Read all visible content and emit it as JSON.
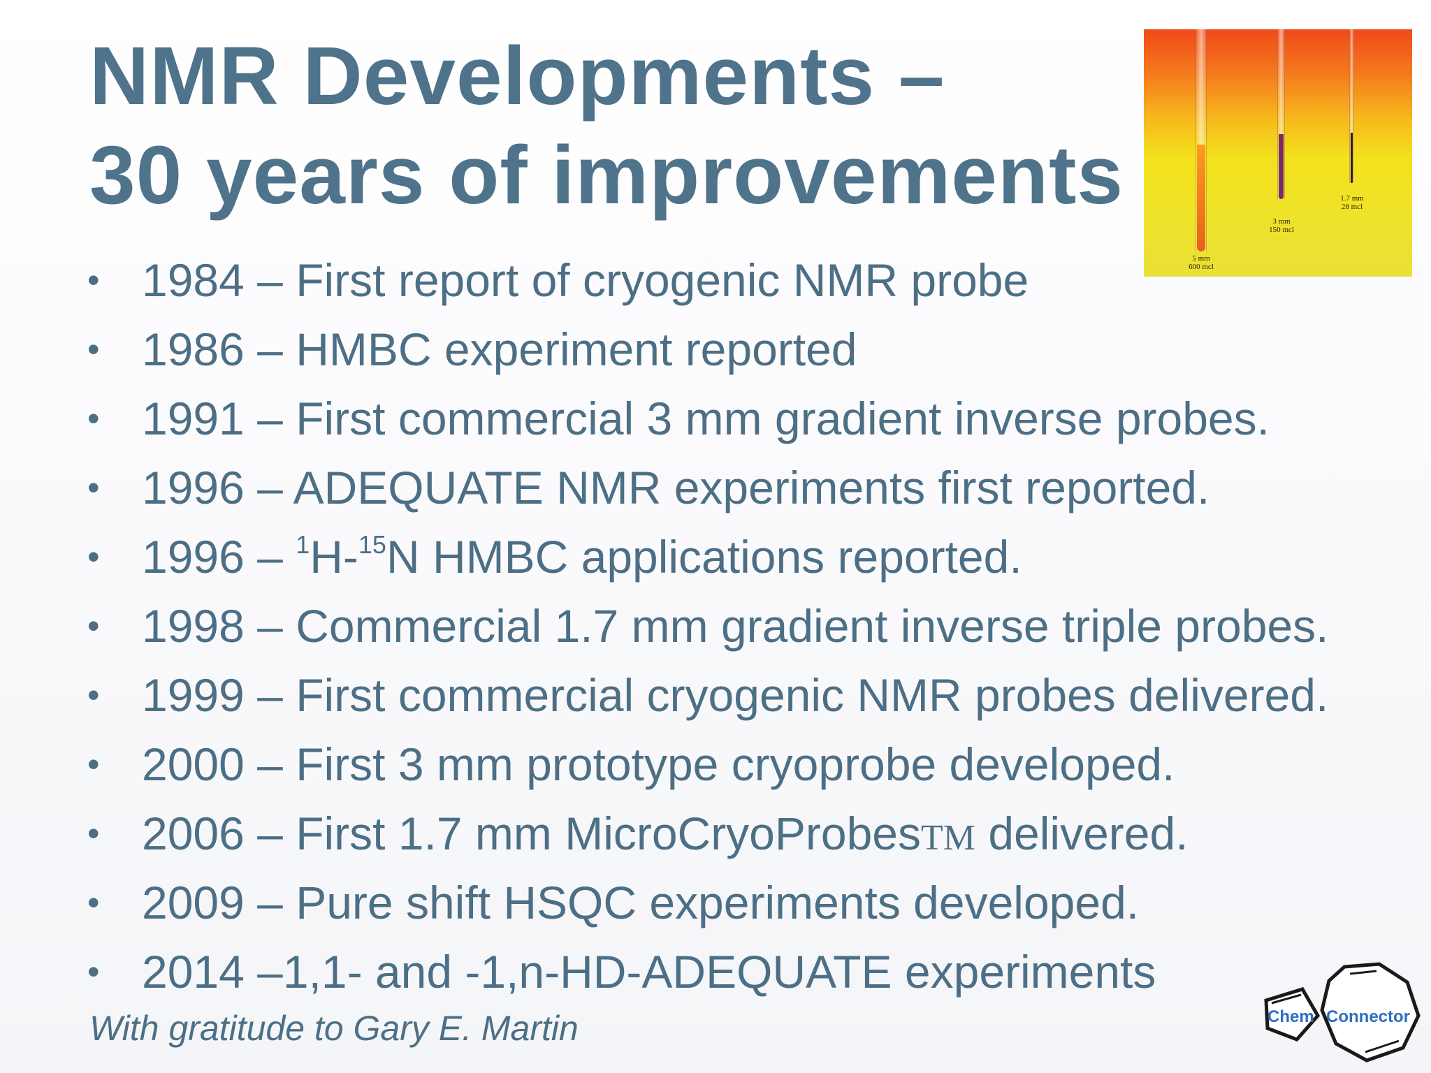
{
  "slide": {
    "title_line1": "NMR Developments –",
    "title_line2": "30 years of improvements",
    "photo": {
      "tubes": [
        {
          "label_top": "5 mm",
          "label_bottom": "600 mcl"
        },
        {
          "label_top": "3 mm",
          "label_bottom": "150 mcl"
        },
        {
          "label_top": "1.7 mm",
          "label_bottom": "28 mcl"
        }
      ]
    },
    "bullets": [
      {
        "marker": "•",
        "text": "1984 – First report of cryogenic NMR probe"
      },
      {
        "marker": "•",
        "text": "1986 – HMBC experiment reported"
      },
      {
        "marker": "•",
        "text": "1991 – First commercial 3 mm gradient inverse probes."
      },
      {
        "marker": "•",
        "text": "1996 – ADEQUATE NMR experiments first reported."
      },
      {
        "marker": "•",
        "prefix": "1996 – ",
        "sup1": "1",
        "mid": "H-",
        "sup2": "15",
        "suffix": "N HMBC applications reported."
      },
      {
        "marker": "•",
        "text": "1998 – Commercial 1.7 mm gradient inverse triple probes."
      },
      {
        "marker": "•",
        "text": "1999 – First commercial cryogenic NMR probes delivered."
      },
      {
        "marker": "•",
        "text": "2000 – First 3 mm prototype cryoprobe developed."
      },
      {
        "marker": "•",
        "prefix": "2006 – First 1.7 mm MicroCryoProbes",
        "tm": "TM",
        "suffix": " delivered."
      },
      {
        "marker": "•",
        "text": "2009 – Pure shift HSQC experiments developed."
      },
      {
        "marker": "•",
        "text": "2014 –1,1- and -1,n-HD-ADEQUATE experiments"
      }
    ],
    "credit": "With gratitude to Gary E. Martin",
    "logo": {
      "word1": "Chem",
      "word2": "Connector"
    }
  }
}
